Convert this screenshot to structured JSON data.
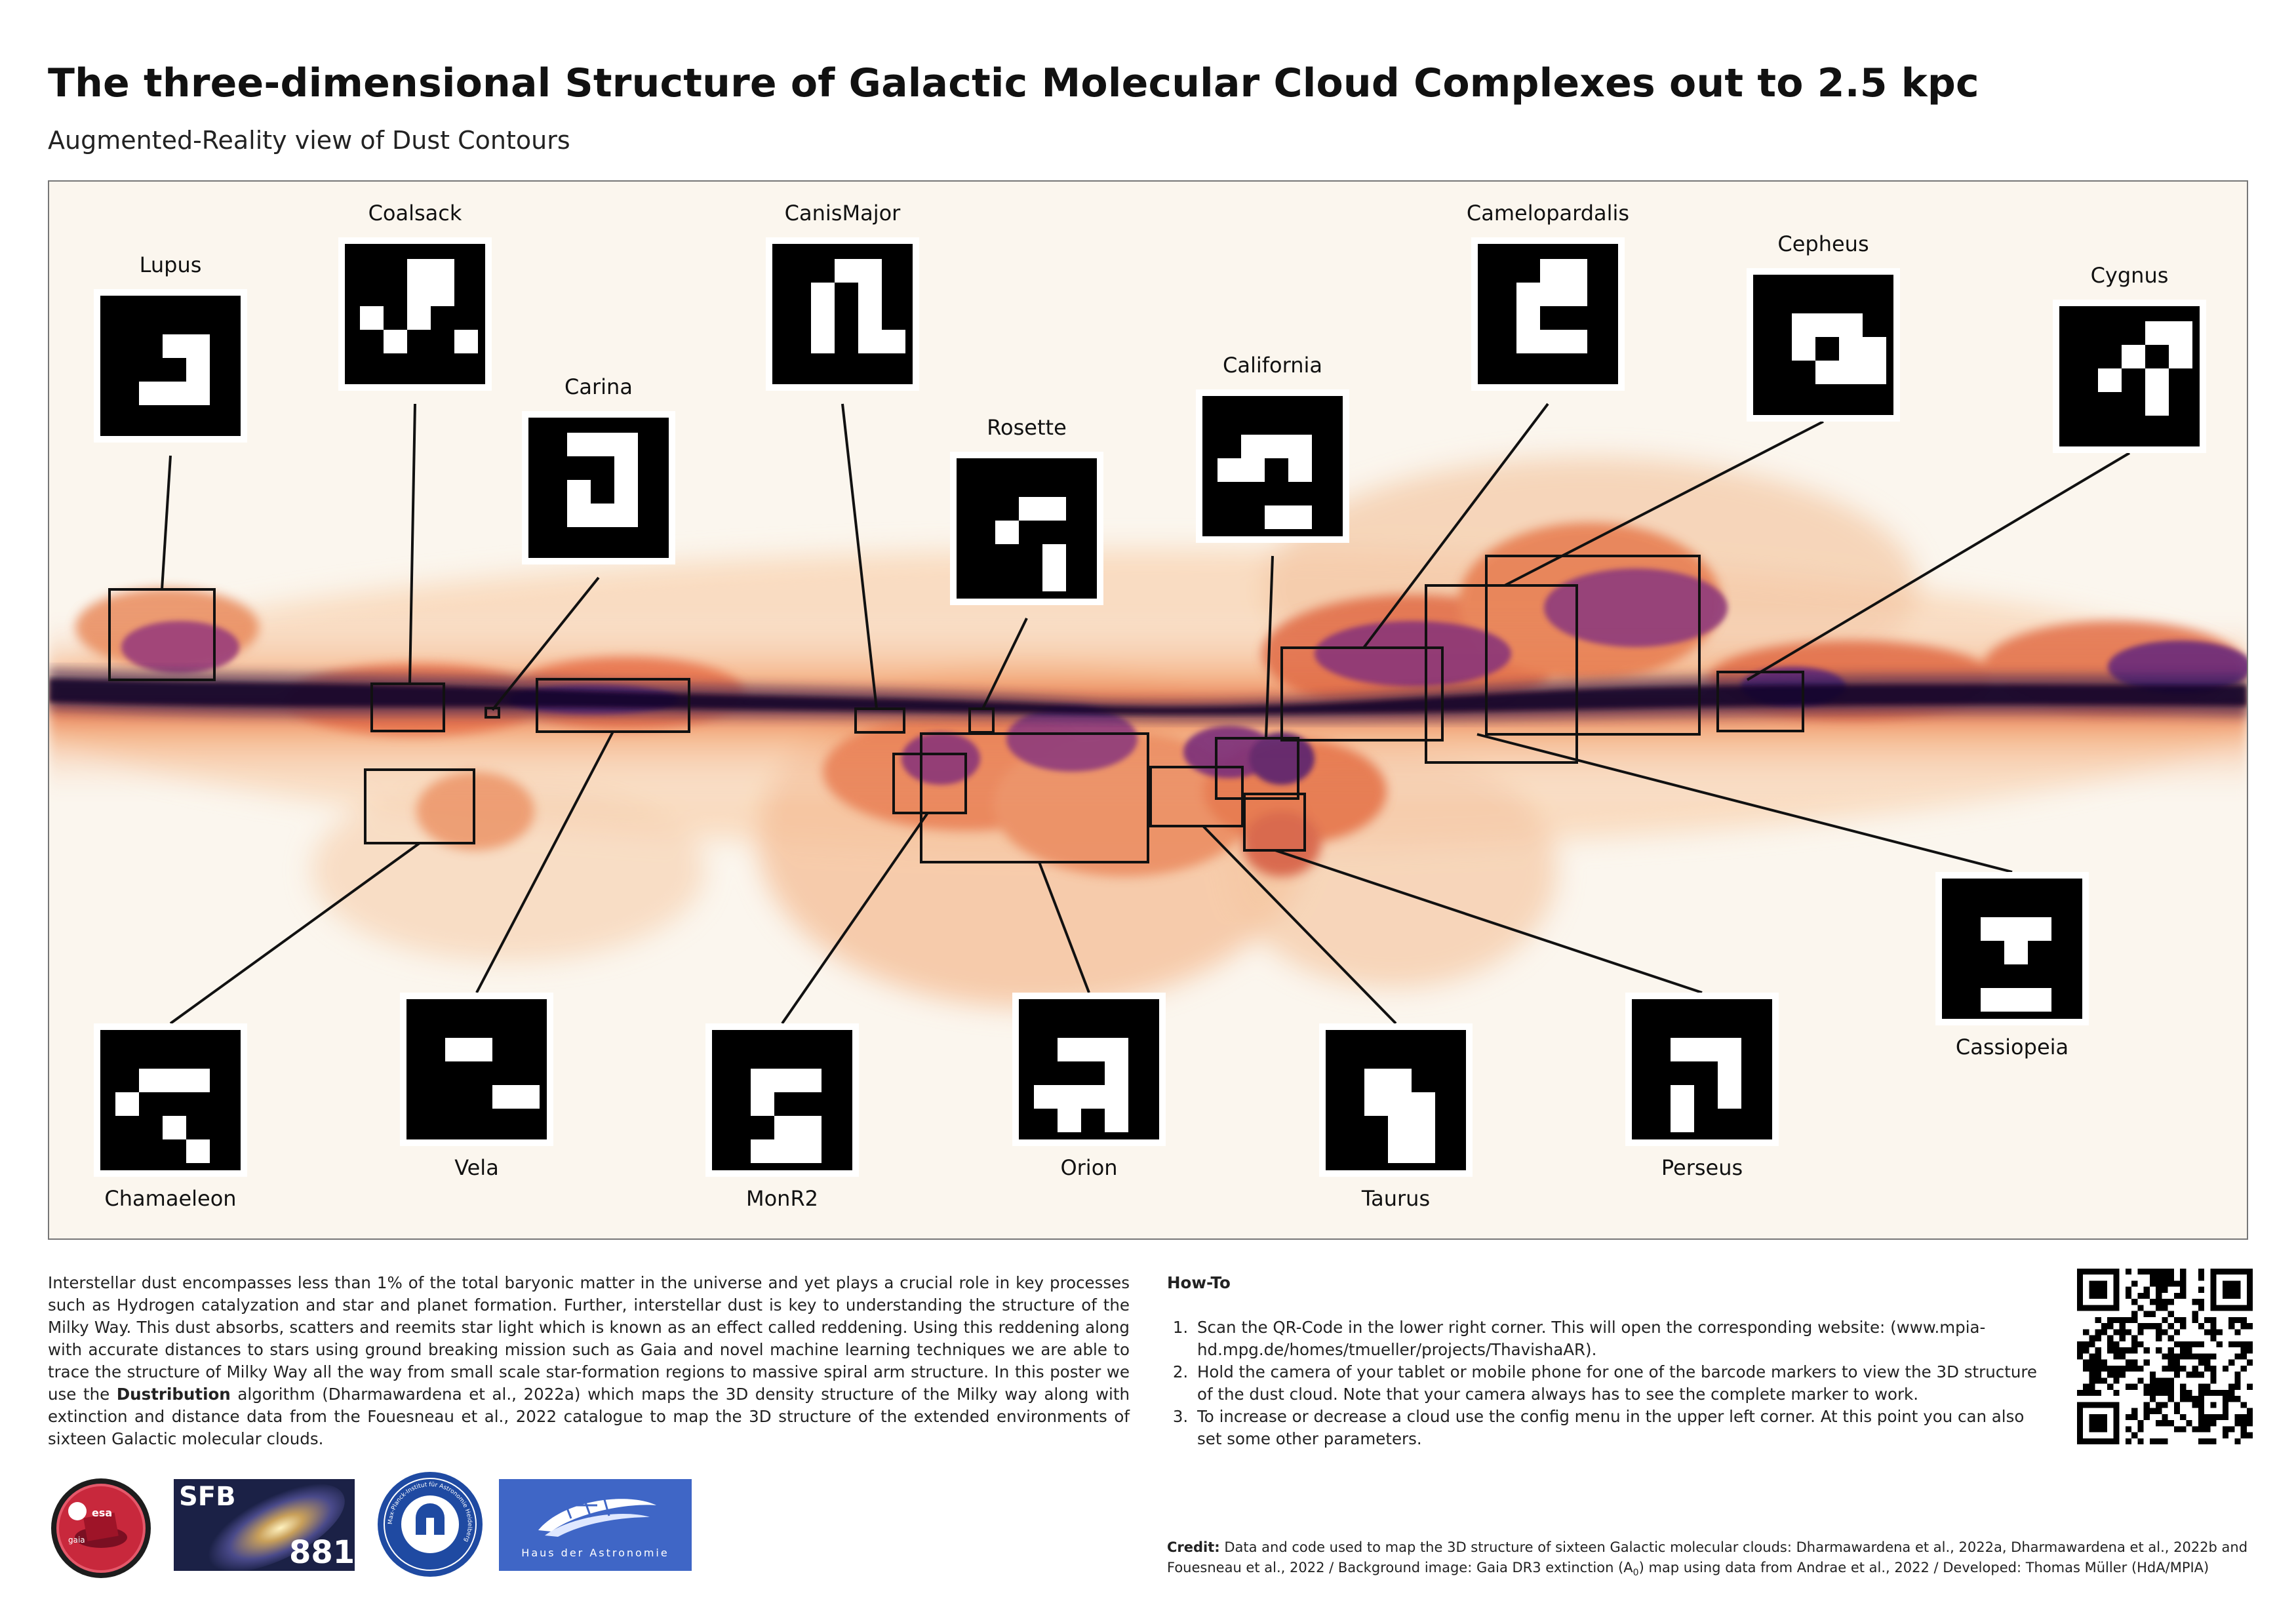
{
  "title": "The three-dimensional Structure of Galactic Molecular Cloud Complexes out to 2.5 kpc",
  "subtitle": "Augmented-Reality view of Dust Contours",
  "clouds": [
    {
      "name": "Lupus"
    },
    {
      "name": "Coalsack"
    },
    {
      "name": "Carina"
    },
    {
      "name": "CanisMajor"
    },
    {
      "name": "Rosette"
    },
    {
      "name": "California"
    },
    {
      "name": "Camelopardalis"
    },
    {
      "name": "Cepheus"
    },
    {
      "name": "Cygnus"
    },
    {
      "name": "Cassiopeia"
    },
    {
      "name": "Perseus"
    },
    {
      "name": "Taurus"
    },
    {
      "name": "Orion"
    },
    {
      "name": "MonR2"
    },
    {
      "name": "Vela"
    },
    {
      "name": "Chamaeleon"
    }
  ],
  "intro": {
    "p1": "Interstellar dust encompasses less than 1% of the total baryonic matter in the universe and yet plays a crucial role in key processes such as Hydrogen catalyzation and star and planet formation. Further, interstellar dust is key to understanding the structure of the Milky Way. This dust absorbs, scatters and reemits star light which is known as an effect called reddening. Using this reddening along with accurate distances to stars using ground breaking mission such as Gaia and novel machine learning techniques we are able to trace the structure of Milky Way all the way from small scale star-formation regions to massive spiral arm structure. In this poster we use the ",
    "algorithm": "Dustribution",
    "p2": " algorithm (Dharmawardena et al., 2022a) which maps the 3D density structure of the Milky way along with extinction and distance data from the Fouesneau et al., 2022 catalogue to map the 3D structure of the extended environments of sixteen Galactic molecular clouds."
  },
  "howto": {
    "heading": "How-To",
    "steps": [
      "Scan the QR-Code in the lower right corner. This will open the corresponding website: (www.mpia-hd.mpg.de/homes/tmueller/projects/ThavishaAR).",
      "Hold the camera of your tablet or mobile phone for one of the barcode markers to view the 3D structure of the dust cloud. Note that your camera always has to see the complete marker to work.",
      "To increase or decrease a cloud use the config menu in the upper left corner. At this point you can also set some other parameters."
    ]
  },
  "credit": {
    "label": "Credit:",
    "text_before_sub": " Data and code used to map the 3D structure of sixteen Galactic molecular clouds: Dharmawardena et al., 2022a, Dharmawardena et al., 2022b and Fouesneau et al., 2022 / Background image: Gaia DR3 extinction (A",
    "sub": "0",
    "text_after_sub": ") map using data from Andrae et al., 2022 / Developed: Thomas Müller (HdA/MPIA)"
  },
  "logos": {
    "esa": "esa",
    "gaia": "gaia",
    "sfb": "SFB",
    "sfb_number": "881",
    "mpia_ring": "Max-Planck-Institut für Astronomie Heidelberg",
    "hda": "Haus der Astronomie"
  },
  "colors": {
    "dust_dark": "#1a1040",
    "dust_mid": "#6a2a7a",
    "dust_warm": "#e8784a",
    "dust_light": "#f7d2b0",
    "background": "#fbf6ee"
  }
}
